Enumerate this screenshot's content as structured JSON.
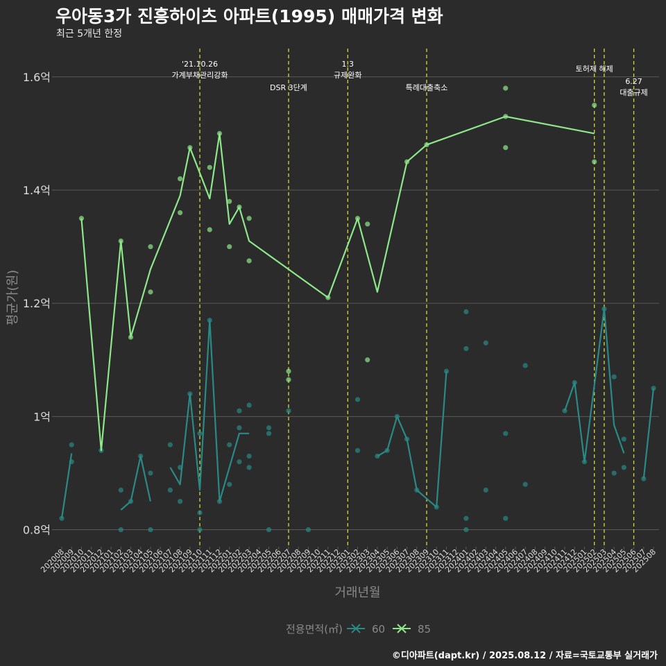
{
  "title": "우아동3가 진흥하이츠 아파트(1995) 매매가격 변화",
  "subtitle": "최근 5개년 한정",
  "caption": "©디아파트(dapt.kr) / 2025.08.12 / 자료=국토교통부 실거래가",
  "colors": {
    "background": "#2b2b2b",
    "grid": "#5a5a5a",
    "series60": "#2a8a86",
    "series85": "#8ee88a",
    "event": "#d6d93a",
    "axis_text": "#dddddd",
    "axis_title": "#8a8a8a"
  },
  "chart_data": {
    "type": "line",
    "xlabel": "거래년월",
    "ylabel": "평균가(원)",
    "ylim": [
      0.77,
      1.65
    ],
    "yticks": [
      {
        "value": 0.8,
        "label": "0.8억"
      },
      {
        "value": 1.0,
        "label": "1억"
      },
      {
        "value": 1.2,
        "label": "1.2억"
      },
      {
        "value": 1.4,
        "label": "1.4억"
      },
      {
        "value": 1.6,
        "label": "1.6억"
      }
    ],
    "categories": [
      "202008",
      "202009",
      "202010",
      "202011",
      "202012",
      "202101",
      "202102",
      "202103",
      "202104",
      "202105",
      "202106",
      "202107",
      "202108",
      "202109",
      "202110",
      "202111",
      "202112",
      "202201",
      "202202",
      "202203",
      "202204",
      "202205",
      "202206",
      "202207",
      "202208",
      "202209",
      "202210",
      "202211",
      "202212",
      "202301",
      "202302",
      "202303",
      "202304",
      "202305",
      "202306",
      "202307",
      "202308",
      "202309",
      "202310",
      "202311",
      "202312",
      "202401",
      "202402",
      "202403",
      "202404",
      "202405",
      "202406",
      "202407",
      "202408",
      "202409",
      "202410",
      "202411",
      "202412",
      "202501",
      "202502",
      "202503",
      "202504",
      "202505",
      "202506",
      "202507",
      "202508"
    ],
    "legend": {
      "title": "전용면적(㎡)",
      "entries": [
        "60",
        "85"
      ],
      "position": "bottom"
    },
    "series": [
      {
        "name": "60",
        "color": "#2a8a86",
        "line": [
          [
            "202008",
            0.82
          ],
          [
            "202009",
            0.935
          ],
          null,
          [
            "202102",
            0.835
          ],
          [
            "202103",
            0.85
          ],
          [
            "202104",
            0.93
          ],
          [
            "202105",
            0.85
          ],
          null,
          [
            "202107",
            0.91
          ],
          [
            "202108",
            0.88
          ],
          [
            "202109",
            1.04
          ],
          [
            "202110",
            0.87
          ],
          [
            "202111",
            1.17
          ],
          [
            "202112",
            0.85
          ],
          [
            "202201",
            0.91
          ],
          [
            "202202",
            0.97
          ],
          [
            "202203",
            0.97
          ],
          null,
          [
            "202304",
            0.93
          ],
          [
            "202305",
            0.94
          ],
          [
            "202306",
            1.0
          ],
          [
            "202307",
            0.96
          ],
          [
            "202308",
            0.87
          ],
          [
            "202310",
            0.84
          ],
          [
            "202311",
            1.08
          ],
          null,
          [
            "202411",
            1.01
          ],
          [
            "202412",
            1.06
          ],
          [
            "202501",
            0.92
          ],
          [
            "202503",
            1.19
          ],
          [
            "202504",
            0.985
          ],
          [
            "202505",
            0.935
          ],
          null,
          [
            "202507",
            0.89
          ],
          [
            "202508",
            1.05
          ]
        ],
        "points": [
          [
            "202008",
            0.82
          ],
          [
            "202009",
            0.95
          ],
          [
            "202009",
            0.92
          ],
          [
            "202012",
            0.94
          ],
          [
            "202102",
            0.87
          ],
          [
            "202102",
            0.8
          ],
          [
            "202103",
            0.85
          ],
          [
            "202104",
            0.93
          ],
          [
            "202105",
            0.9
          ],
          [
            "202105",
            0.8
          ],
          [
            "202107",
            0.95
          ],
          [
            "202107",
            0.87
          ],
          [
            "202108",
            0.91
          ],
          [
            "202108",
            0.85
          ],
          [
            "202109",
            1.04
          ],
          [
            "202110",
            0.97
          ],
          [
            "202110",
            0.83
          ],
          [
            "202110",
            0.8
          ],
          [
            "202111",
            1.17
          ],
          [
            "202112",
            0.85
          ],
          [
            "202201",
            0.95
          ],
          [
            "202201",
            0.88
          ],
          [
            "202202",
            1.01
          ],
          [
            "202202",
            0.98
          ],
          [
            "202202",
            0.92
          ],
          [
            "202203",
            1.02
          ],
          [
            "202203",
            0.93
          ],
          [
            "202203",
            0.91
          ],
          [
            "202205",
            0.98
          ],
          [
            "202205",
            0.97
          ],
          [
            "202205",
            0.8
          ],
          [
            "202207",
            1.01
          ],
          [
            "202209",
            0.8
          ],
          [
            "202302",
            1.03
          ],
          [
            "202302",
            0.94
          ],
          [
            "202304",
            0.93
          ],
          [
            "202305",
            0.94
          ],
          [
            "202306",
            1.0
          ],
          [
            "202307",
            0.96
          ],
          [
            "202308",
            0.87
          ],
          [
            "202310",
            0.84
          ],
          [
            "202311",
            1.08
          ],
          [
            "202401",
            1.185
          ],
          [
            "202401",
            1.12
          ],
          [
            "202401",
            0.82
          ],
          [
            "202401",
            0.8
          ],
          [
            "202403",
            1.13
          ],
          [
            "202403",
            0.87
          ],
          [
            "202405",
            0.97
          ],
          [
            "202405",
            0.82
          ],
          [
            "202407",
            1.09
          ],
          [
            "202407",
            0.88
          ],
          [
            "202411",
            1.01
          ],
          [
            "202412",
            1.06
          ],
          [
            "202501",
            0.92
          ],
          [
            "202503",
            1.19
          ],
          [
            "202504",
            1.07
          ],
          [
            "202504",
            0.9
          ],
          [
            "202505",
            0.96
          ],
          [
            "202505",
            0.91
          ],
          [
            "202507",
            0.89
          ],
          [
            "202508",
            1.05
          ]
        ]
      },
      {
        "name": "85",
        "color": "#8ee88a",
        "line": [
          [
            "202010",
            1.35
          ],
          [
            "202012",
            0.94
          ],
          [
            "202102",
            1.31
          ],
          [
            "202103",
            1.14
          ],
          [
            "202105",
            1.26
          ],
          [
            "202108",
            1.39
          ],
          [
            "202109",
            1.475
          ],
          [
            "202111",
            1.385
          ],
          [
            "202112",
            1.5
          ],
          [
            "202201",
            1.34
          ],
          [
            "202202",
            1.37
          ],
          [
            "202203",
            1.31
          ],
          [
            "202211",
            1.21
          ],
          [
            "202302",
            1.35
          ],
          [
            "202304",
            1.22
          ],
          [
            "202307",
            1.45
          ],
          [
            "202309",
            1.48
          ],
          [
            "202405",
            1.53
          ],
          [
            "202502",
            1.5
          ]
        ],
        "points": [
          [
            "202010",
            1.35
          ],
          [
            "202102",
            1.31
          ],
          [
            "202103",
            1.14
          ],
          [
            "202105",
            1.3
          ],
          [
            "202105",
            1.22
          ],
          [
            "202108",
            1.42
          ],
          [
            "202108",
            1.36
          ],
          [
            "202109",
            1.475
          ],
          [
            "202111",
            1.44
          ],
          [
            "202111",
            1.33
          ],
          [
            "202112",
            1.5
          ],
          [
            "202201",
            1.38
          ],
          [
            "202201",
            1.3
          ],
          [
            "202202",
            1.37
          ],
          [
            "202203",
            1.35
          ],
          [
            "202203",
            1.275
          ],
          [
            "202207",
            1.08
          ],
          [
            "202207",
            1.065
          ],
          [
            "202211",
            1.21
          ],
          [
            "202302",
            1.35
          ],
          [
            "202303",
            1.34
          ],
          [
            "202303",
            1.1
          ],
          [
            "202307",
            1.45
          ],
          [
            "202309",
            1.48
          ],
          [
            "202405",
            1.58
          ],
          [
            "202405",
            1.53
          ],
          [
            "202405",
            1.475
          ],
          [
            "202502",
            1.55
          ],
          [
            "202502",
            1.45
          ]
        ]
      }
    ],
    "events": [
      {
        "x": "202110",
        "lines": [
          "'21.10.26",
          "가계부채관리강화"
        ],
        "row": 0
      },
      {
        "x": "202207",
        "lines": [
          "DSR 3단계"
        ],
        "row": 2
      },
      {
        "x": "202301",
        "lines": [
          "1.3",
          "규제완화"
        ],
        "row": 0
      },
      {
        "x": "202309",
        "lines": [
          "특례대출축소"
        ],
        "row": 2
      },
      {
        "x": "202502",
        "lines": [
          "토허제 해제"
        ],
        "row": 1
      },
      {
        "x": "202503",
        "lines": [],
        "row": 0
      },
      {
        "x": "202506",
        "lines": [
          "6.27",
          "대출규제"
        ],
        "row": 3
      }
    ]
  }
}
